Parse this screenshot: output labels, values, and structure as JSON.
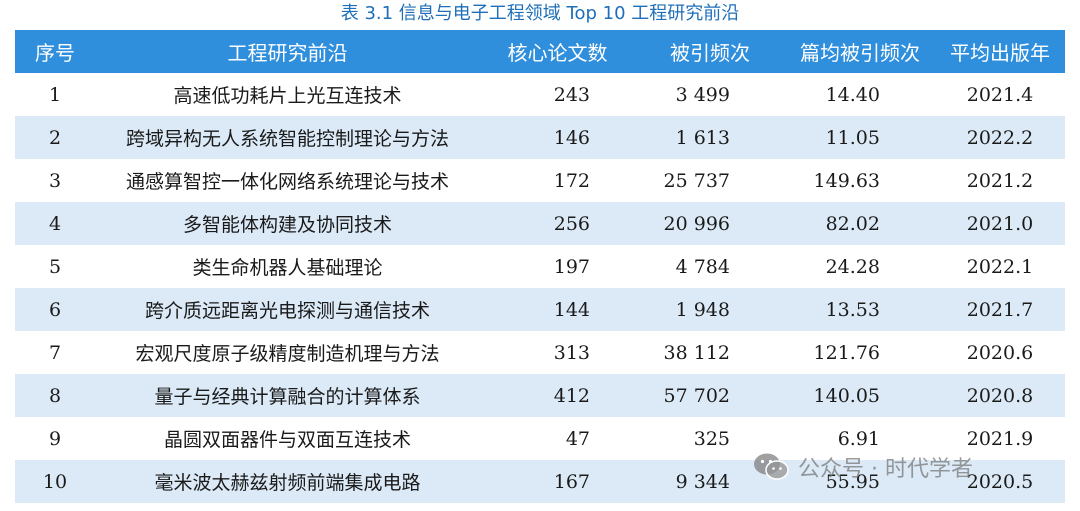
{
  "caption": "表 3.1 信息与电子工程领域 Top 10 工程研究前沿",
  "headers": [
    "序号",
    "工程研究前沿",
    "核心论文数",
    "被引频次",
    "篇均被引频次",
    "平均出版年"
  ],
  "rows": [
    {
      "no": "1",
      "frontier": "高速低功耗片上光互连技术",
      "papers": "243",
      "citations": "3 499",
      "avg_citations": "14.40",
      "avg_year": "2021.4"
    },
    {
      "no": "2",
      "frontier": "跨域异构无人系统智能控制理论与方法",
      "papers": "146",
      "citations": "1 613",
      "avg_citations": "11.05",
      "avg_year": "2022.2"
    },
    {
      "no": "3",
      "frontier": "通感算智控一体化网络系统理论与技术",
      "papers": "172",
      "citations": "25 737",
      "avg_citations": "149.63",
      "avg_year": "2021.2"
    },
    {
      "no": "4",
      "frontier": "多智能体构建及协同技术",
      "papers": "256",
      "citations": "20 996",
      "avg_citations": "82.02",
      "avg_year": "2021.0"
    },
    {
      "no": "5",
      "frontier": "类生命机器人基础理论",
      "papers": "197",
      "citations": "4 784",
      "avg_citations": "24.28",
      "avg_year": "2022.1"
    },
    {
      "no": "6",
      "frontier": "跨介质远距离光电探测与通信技术",
      "papers": "144",
      "citations": "1 948",
      "avg_citations": "13.53",
      "avg_year": "2021.7"
    },
    {
      "no": "7",
      "frontier": "宏观尺度原子级精度制造机理与方法",
      "papers": "313",
      "citations": "38 112",
      "avg_citations": "121.76",
      "avg_year": "2020.6"
    },
    {
      "no": "8",
      "frontier": "量子与经典计算融合的计算体系",
      "papers": "412",
      "citations": "57 702",
      "avg_citations": "140.05",
      "avg_year": "2020.8"
    },
    {
      "no": "9",
      "frontier": "晶圆双面器件与双面互连技术",
      "papers": "47",
      "citations": "325",
      "avg_citations": "6.91",
      "avg_year": "2021.9"
    },
    {
      "no": "10",
      "frontier": "毫米波太赫兹射频前端集成电路",
      "papers": "167",
      "citations": "9 344",
      "avg_citations": "55.95",
      "avg_year": "2020.5"
    }
  ],
  "watermark": {
    "icon": "wechat-icon",
    "text": "公众号 · 时代学者"
  },
  "colors": {
    "header_bg": "#2f8fdc",
    "stripe_bg": "#dceaf7",
    "caption": "#1e6fb8"
  }
}
